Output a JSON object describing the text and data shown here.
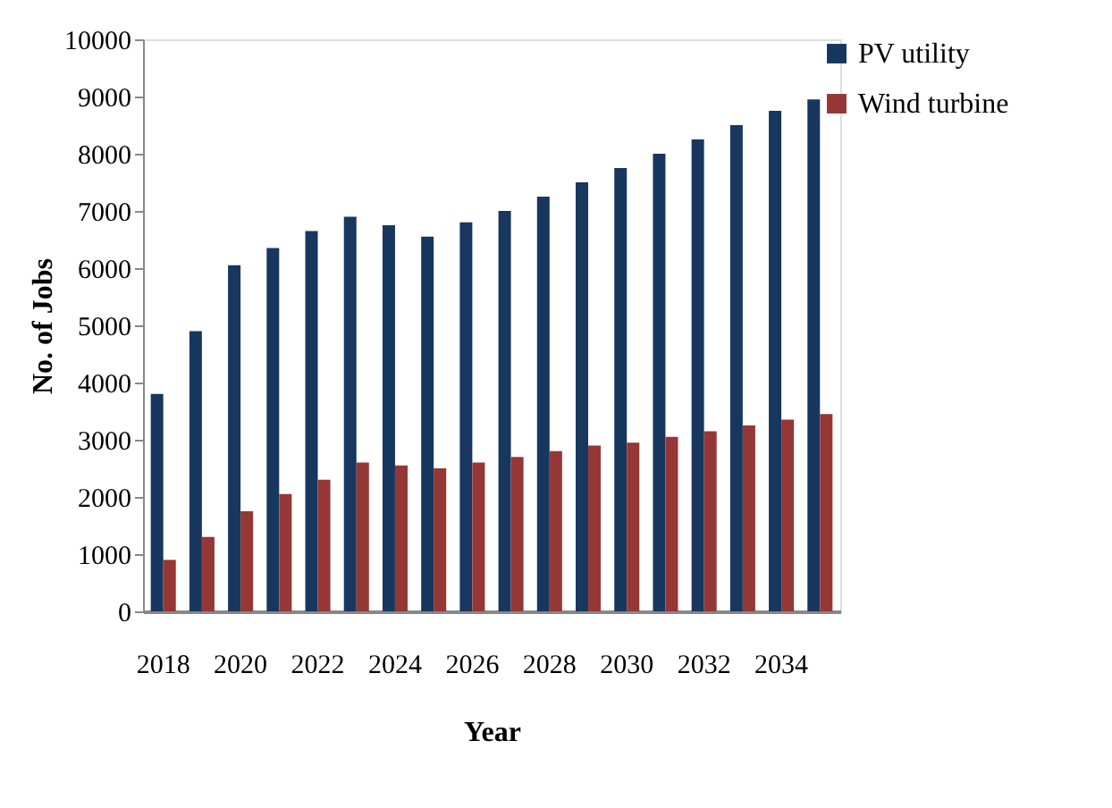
{
  "chart_data": {
    "type": "bar",
    "xlabel": "Year",
    "ylabel": "No. of Jobs",
    "categories": [
      "2018",
      null,
      "2020",
      null,
      "2022",
      null,
      "2024",
      null,
      "2026",
      null,
      "2028",
      null,
      "2030",
      null,
      "2032",
      null,
      "2034",
      null
    ],
    "series": [
      {
        "name": "PV utility",
        "color": "#17375e",
        "values": [
          3800,
          4900,
          6050,
          6350,
          6650,
          6900,
          6750,
          6550,
          6800,
          7000,
          7250,
          7500,
          7750,
          8000,
          8250,
          8500,
          8750,
          8950
        ]
      },
      {
        "name": "Wind turbine",
        "color": "#953735",
        "values": [
          900,
          1300,
          1750,
          2050,
          2300,
          2600,
          2550,
          2500,
          2600,
          2700,
          2800,
          2900,
          2950,
          3050,
          3150,
          3250,
          3350,
          3450
        ]
      }
    ],
    "ylim": [
      0,
      10000
    ],
    "yticks": [
      0,
      1000,
      2000,
      3000,
      4000,
      5000,
      6000,
      7000,
      8000,
      9000,
      10000
    ],
    "grid": false,
    "legend": "right"
  }
}
